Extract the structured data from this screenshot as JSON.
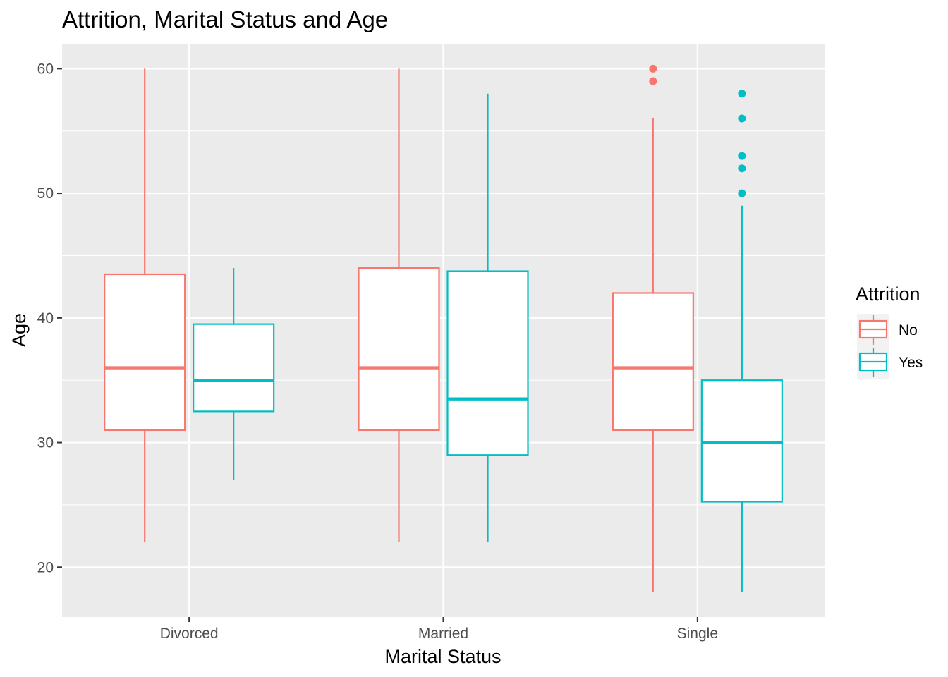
{
  "chart_data": {
    "type": "boxplot",
    "title": "Attrition, Marital Status and Age",
    "xlabel": "Marital Status",
    "ylabel": "Age",
    "categories": [
      "Divorced",
      "Married",
      "Single"
    ],
    "y_ticks": [
      20,
      30,
      40,
      50,
      60
    ],
    "ylim": [
      16,
      62
    ],
    "grid": true,
    "legend": {
      "title": "Attrition",
      "placement": "right"
    },
    "series": [
      {
        "name": "No",
        "color": "#F8766D",
        "boxes": [
          {
            "category": "Divorced",
            "whisker_low": 22,
            "q1": 31,
            "median": 36,
            "q3": 43.5,
            "whisker_high": 60,
            "outliers": []
          },
          {
            "category": "Married",
            "whisker_low": 22,
            "q1": 31,
            "median": 36,
            "q3": 44,
            "whisker_high": 60,
            "outliers": []
          },
          {
            "category": "Single",
            "whisker_low": 18,
            "q1": 31,
            "median": 36,
            "q3": 42,
            "whisker_high": 56,
            "outliers": [
              59,
              60
            ]
          }
        ]
      },
      {
        "name": "Yes",
        "color": "#00BFC4",
        "boxes": [
          {
            "category": "Divorced",
            "whisker_low": 27,
            "q1": 32.5,
            "median": 35,
            "q3": 39.5,
            "whisker_high": 44,
            "outliers": []
          },
          {
            "category": "Married",
            "whisker_low": 22,
            "q1": 29,
            "median": 33.5,
            "q3": 43.75,
            "whisker_high": 58,
            "outliers": []
          },
          {
            "category": "Single",
            "whisker_low": 18,
            "q1": 25.25,
            "median": 30,
            "q3": 35,
            "whisker_high": 49,
            "outliers": [
              50,
              52,
              53,
              56,
              58
            ]
          }
        ]
      }
    ]
  }
}
